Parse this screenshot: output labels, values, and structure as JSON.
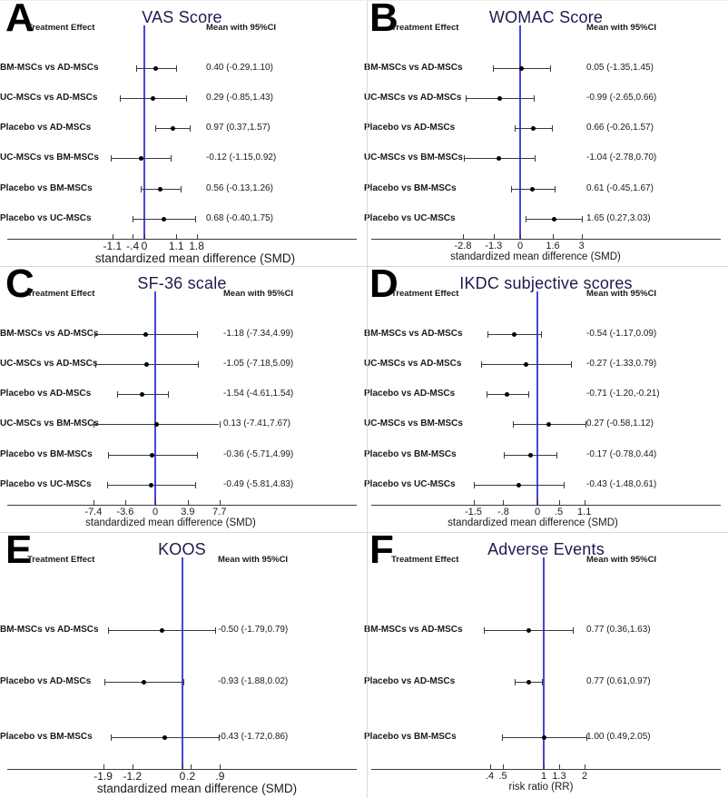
{
  "colors": {
    "reference_line": "#4545d8",
    "panel_title": "#1b1b4f",
    "text": "#1a1a1a",
    "axis": "#3a3a3a",
    "divider": "#d9d9d9"
  },
  "chart_data": [
    {
      "type": "forest",
      "panel_label": "A",
      "title": "VAS Score",
      "columns": {
        "left": "Treatment Effect",
        "right": "Mean with 95%CI"
      },
      "xlabel": "standardized mean difference (SMD)",
      "x_scale": "linear",
      "ref_value": 0,
      "ticks": [
        {
          "value": -1.1,
          "label": "-1.1"
        },
        {
          "value": -0.4,
          "label": "-.4"
        },
        {
          "value": 0,
          "label": "0"
        },
        {
          "value": 1.1,
          "label": "1.1"
        },
        {
          "value": 1.8,
          "label": "1.8"
        }
      ],
      "rows": [
        {
          "label": "BM-MSCs vs AD-MSCs",
          "mean": 0.4,
          "ci_low": -0.29,
          "ci_high": 1.1,
          "display": "0.40 (-0.29,1.10)"
        },
        {
          "label": "UC-MSCs vs AD-MSCs",
          "mean": 0.29,
          "ci_low": -0.85,
          "ci_high": 1.43,
          "display": "0.29 (-0.85,1.43)"
        },
        {
          "label": "Placebo vs AD-MSCs",
          "mean": 0.97,
          "ci_low": 0.37,
          "ci_high": 1.57,
          "display": "0.97 (0.37,1.57)"
        },
        {
          "label": "UC-MSCs vs BM-MSCs",
          "mean": -0.12,
          "ci_low": -1.15,
          "ci_high": 0.92,
          "display": "-0.12 (-1.15,0.92)"
        },
        {
          "label": "Placebo vs BM-MSCs",
          "mean": 0.56,
          "ci_low": -0.13,
          "ci_high": 1.26,
          "display": "0.56 (-0.13,1.26)"
        },
        {
          "label": "Placebo vs UC-MSCs",
          "mean": 0.68,
          "ci_low": -0.4,
          "ci_high": 1.75,
          "display": "0.68 (-0.40,1.75)"
        }
      ]
    },
    {
      "type": "forest",
      "panel_label": "B",
      "title": "WOMAC Score",
      "columns": {
        "left": "Treatment Effect",
        "right": "Mean with 95%CI"
      },
      "xlabel": "standardized mean difference (SMD)",
      "x_scale": "linear",
      "ref_value": 0,
      "ticks": [
        {
          "value": -2.8,
          "label": "-2.8"
        },
        {
          "value": -1.3,
          "label": "-1.3"
        },
        {
          "value": 0,
          "label": "0"
        },
        {
          "value": 1.6,
          "label": "1.6"
        },
        {
          "value": 3,
          "label": "3"
        }
      ],
      "rows": [
        {
          "label": "BM-MSCs vs AD-MSCs",
          "mean": 0.05,
          "ci_low": -1.35,
          "ci_high": 1.45,
          "display": "0.05 (-1.35,1.45)"
        },
        {
          "label": "UC-MSCs vs AD-MSCs",
          "mean": -0.99,
          "ci_low": -2.65,
          "ci_high": 0.66,
          "display": "-0.99 (-2.65,0.66)"
        },
        {
          "label": "Placebo vs AD-MSCs",
          "mean": 0.66,
          "ci_low": -0.26,
          "ci_high": 1.57,
          "display": "0.66 (-0.26,1.57)"
        },
        {
          "label": "UC-MSCs vs BM-MSCs",
          "mean": -1.04,
          "ci_low": -2.78,
          "ci_high": 0.7,
          "display": "-1.04 (-2.78,0.70)"
        },
        {
          "label": "Placebo vs BM-MSCs",
          "mean": 0.61,
          "ci_low": -0.45,
          "ci_high": 1.67,
          "display": "0.61 (-0.45,1.67)"
        },
        {
          "label": "Placebo vs UC-MSCs",
          "mean": 1.65,
          "ci_low": 0.27,
          "ci_high": 3.03,
          "display": "1.65 (0.27,3.03)"
        }
      ]
    },
    {
      "type": "forest",
      "panel_label": "C",
      "title": "SF-36 scale",
      "columns": {
        "left": "Treatment Effect",
        "right": "Mean with 95%CI"
      },
      "xlabel": "standardized mean difference (SMD)",
      "x_scale": "linear",
      "ref_value": 0,
      "ticks": [
        {
          "value": -7.4,
          "label": "-7.4"
        },
        {
          "value": -3.6,
          "label": "-3.6"
        },
        {
          "value": 0,
          "label": "0"
        },
        {
          "value": 3.9,
          "label": "3.9"
        },
        {
          "value": 7.7,
          "label": "7.7"
        }
      ],
      "rows": [
        {
          "label": "BM-MSCs vs AD-MSCs",
          "mean": -1.18,
          "ci_low": -7.34,
          "ci_high": 4.99,
          "display": "-1.18 (-7.34,4.99)"
        },
        {
          "label": "UC-MSCs vs AD-MSCs",
          "mean": -1.05,
          "ci_low": -7.18,
          "ci_high": 5.09,
          "display": "-1.05 (-7.18,5.09)"
        },
        {
          "label": "Placebo vs AD-MSCs",
          "mean": -1.54,
          "ci_low": -4.61,
          "ci_high": 1.54,
          "display": "-1.54 (-4.61,1.54)"
        },
        {
          "label": "UC-MSCs vs BM-MSCs",
          "mean": 0.13,
          "ci_low": -7.41,
          "ci_high": 7.67,
          "display": "0.13 (-7.41,7.67)"
        },
        {
          "label": "Placebo vs BM-MSCs",
          "mean": -0.36,
          "ci_low": -5.71,
          "ci_high": 4.99,
          "display": "-0.36 (-5.71,4.99)"
        },
        {
          "label": "Placebo vs UC-MSCs",
          "mean": -0.49,
          "ci_low": -5.81,
          "ci_high": 4.83,
          "display": "-0.49 (-5.81,4.83)"
        }
      ]
    },
    {
      "type": "forest",
      "panel_label": "D",
      "title": "IKDC subjective scores",
      "columns": {
        "left": "Treatment Effect",
        "right": "Mean with 95%CI"
      },
      "xlabel": "standardized mean difference (SMD)",
      "x_scale": "linear",
      "ref_value": 0,
      "ticks": [
        {
          "value": -1.5,
          "label": "-1.5"
        },
        {
          "value": -0.8,
          "label": "-.8"
        },
        {
          "value": 0,
          "label": "0"
        },
        {
          "value": 0.5,
          "label": ".5"
        },
        {
          "value": 1.1,
          "label": "1.1"
        }
      ],
      "rows": [
        {
          "label": "BM-MSCs vs AD-MSCs",
          "mean": -0.54,
          "ci_low": -1.17,
          "ci_high": 0.09,
          "display": "-0.54 (-1.17,0.09)"
        },
        {
          "label": "UC-MSCs vs AD-MSCs",
          "mean": -0.27,
          "ci_low": -1.33,
          "ci_high": 0.79,
          "display": "-0.27 (-1.33,0.79)"
        },
        {
          "label": "Placebo vs AD-MSCs",
          "mean": -0.71,
          "ci_low": -1.2,
          "ci_high": -0.21,
          "display": "-0.71 (-1.20,-0.21)"
        },
        {
          "label": "UC-MSCs vs BM-MSCs",
          "mean": 0.27,
          "ci_low": -0.58,
          "ci_high": 1.12,
          "display": "0.27 (-0.58,1.12)"
        },
        {
          "label": "Placebo vs BM-MSCs",
          "mean": -0.17,
          "ci_low": -0.78,
          "ci_high": 0.44,
          "display": "-0.17 (-0.78,0.44)"
        },
        {
          "label": "Placebo vs UC-MSCs",
          "mean": -0.43,
          "ci_low": -1.48,
          "ci_high": 0.61,
          "display": "-0.43 (-1.48,0.61)"
        }
      ]
    },
    {
      "type": "forest",
      "panel_label": "E",
      "title": "KOOS",
      "columns": {
        "left": "Treatment Effect",
        "right": "Mean with 95%CI"
      },
      "xlabel": "standardized mean difference (SMD)",
      "x_scale": "linear",
      "ref_value": 0,
      "ticks": [
        {
          "value": -1.9,
          "label": "-1.9"
        },
        {
          "value": -1.2,
          "label": "-1.2"
        },
        {
          "value": 0,
          "label": "0"
        },
        {
          "value": 0.2,
          "label": ".2"
        },
        {
          "value": 0.9,
          "label": ".9"
        }
      ],
      "rows": [
        {
          "label": "BM-MSCs vs AD-MSCs",
          "mean": -0.5,
          "ci_low": -1.79,
          "ci_high": 0.79,
          "display": "-0.50 (-1.79,0.79)"
        },
        {
          "label": "Placebo vs AD-MSCs",
          "mean": -0.93,
          "ci_low": -1.88,
          "ci_high": 0.02,
          "display": "-0.93 (-1.88,0.02)"
        },
        {
          "label": "Placebo vs BM-MSCs",
          "mean": -0.43,
          "ci_low": -1.72,
          "ci_high": 0.86,
          "display": "-0.43 (-1.72,0.86)"
        }
      ]
    },
    {
      "type": "forest",
      "panel_label": "F",
      "title": "Adverse Events",
      "columns": {
        "left": "Treatment Effect",
        "right": "Mean with 95%CI"
      },
      "xlabel": "risk ratio (RR)",
      "x_scale": "log",
      "ref_value": 1,
      "ticks": [
        {
          "value": 0.4,
          "label": ".4"
        },
        {
          "value": 0.5,
          "label": ".5"
        },
        {
          "value": 1,
          "label": "1"
        },
        {
          "value": 1.3,
          "label": "1.3"
        },
        {
          "value": 2,
          "label": "2"
        }
      ],
      "rows": [
        {
          "label": "BM-MSCs vs AD-MSCs",
          "mean": 0.77,
          "ci_low": 0.36,
          "ci_high": 1.63,
          "display": "0.77 (0.36,1.63)"
        },
        {
          "label": "Placebo vs AD-MSCs",
          "mean": 0.77,
          "ci_low": 0.61,
          "ci_high": 0.97,
          "display": "0.77 (0.61,0.97)"
        },
        {
          "label": "Placebo vs BM-MSCs",
          "mean": 1.0,
          "ci_low": 0.49,
          "ci_high": 2.05,
          "display": "1.00 (0.49,2.05)"
        }
      ]
    }
  ]
}
